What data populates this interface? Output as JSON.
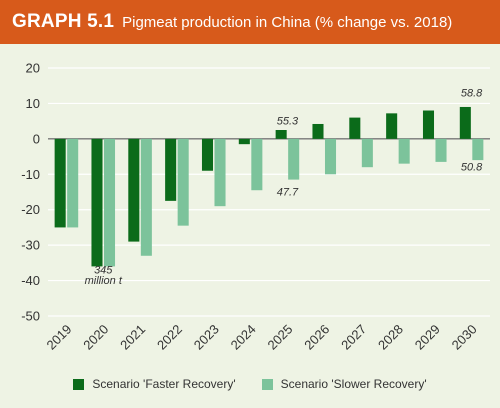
{
  "header": {
    "label": "GRAPH 5.1",
    "title": "Pigmeat production in China (% change vs. 2018)"
  },
  "colors": {
    "banner": "#d75a1b",
    "faster": "#0b6b1a",
    "slower": "#7cc39b",
    "background": "#eef3e4"
  },
  "chart_data": {
    "type": "bar",
    "categories": [
      "2019",
      "2020",
      "2021",
      "2022",
      "2023",
      "2024",
      "2025",
      "2026",
      "2027",
      "2028",
      "2029",
      "2030"
    ],
    "series": [
      {
        "name": "Scenario 'Faster Recovery'",
        "values": [
          -25,
          -36,
          -29,
          -17.5,
          -9,
          -1.5,
          2.5,
          4.2,
          6,
          7.2,
          8,
          9
        ]
      },
      {
        "name": "Scenario 'Slower Recovery'",
        "values": [
          -25,
          -36,
          -33,
          -24.5,
          -19,
          -14.5,
          -11.5,
          -10,
          -8,
          -7,
          -6.5,
          -6
        ]
      }
    ],
    "ylim": [
      -50,
      20
    ],
    "yticks": [
      20,
      10,
      0,
      -10,
      -20,
      -30,
      -40,
      -50
    ],
    "grid": true,
    "legend_position": "bottom",
    "annotations": [
      {
        "text": "345",
        "x": "2020",
        "y": -38
      },
      {
        "text": "million t",
        "x": "2020",
        "y": -41
      },
      {
        "text": "55.3",
        "x": "2025",
        "y": 4
      },
      {
        "text": "47.7",
        "x": "2025",
        "y": -16
      },
      {
        "text": "58.8",
        "x": "2030",
        "y": 12
      },
      {
        "text": "50.8",
        "x": "2030",
        "y": -9
      }
    ]
  }
}
